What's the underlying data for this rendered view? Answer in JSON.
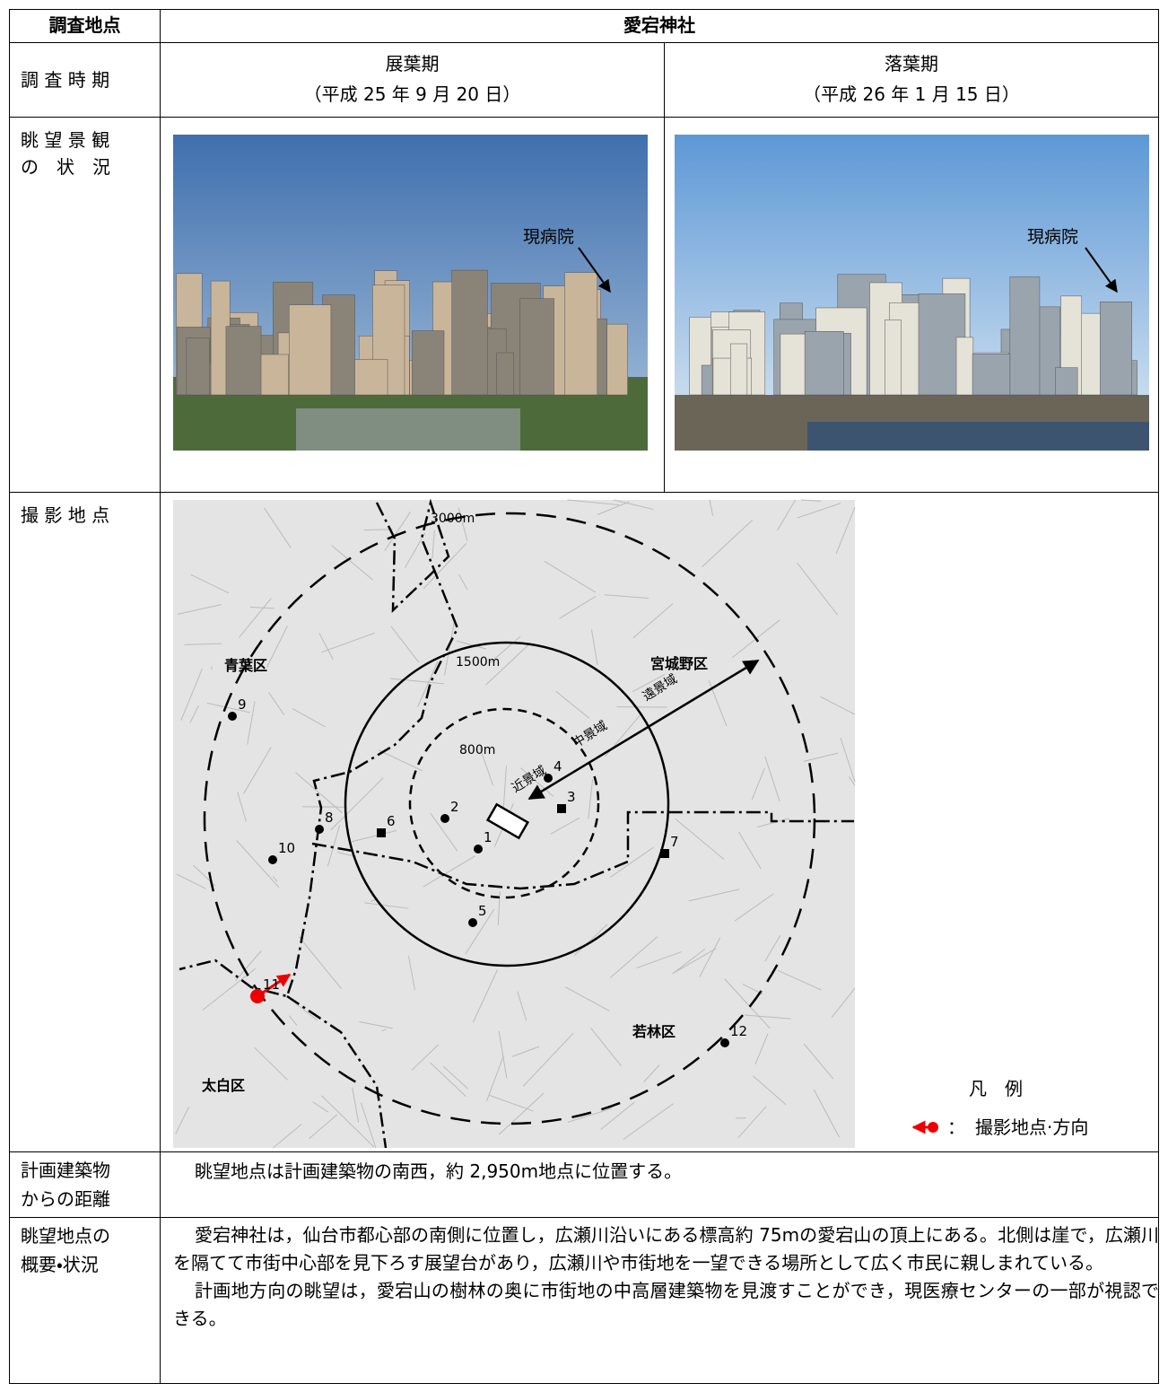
{
  "table": {
    "header": {
      "label": "調査地点",
      "value": "愛宕神社"
    },
    "survey_period": {
      "label": "調 査 時 期",
      "leaf_on": {
        "title": "展葉期",
        "date": "（平成 25 年 9 月 20 日）"
      },
      "leaf_off": {
        "title": "落葉期",
        "date": "（平成 26 年 1 月 15 日）"
      }
    },
    "view": {
      "label": [
        "眺 望 景 観",
        "の　状　況"
      ],
      "leaf_on_annotation": "現病院",
      "leaf_off_annotation": "現病院"
    },
    "photo_location": {
      "label": "撮 影 地 点",
      "map": {
        "rings": [
          "3000m",
          "1500m",
          "800m"
        ],
        "wards": [
          "青葉区",
          "宮城野区",
          "若林区",
          "太白区"
        ],
        "zones": [
          "近景域",
          "中景域",
          "遠景域"
        ],
        "points": [
          "1",
          "2",
          "3",
          "4",
          "5",
          "6",
          "7",
          "8",
          "9",
          "10",
          "11",
          "12"
        ]
      },
      "legend": {
        "title": "凡　例",
        "separator": "：",
        "item": "撮影地点·方向"
      }
    },
    "distance": {
      "label": [
        "計画建築物",
        "からの距離"
      ],
      "text": "眺望地点は計画建築物の南西，約 2,950m地点に位置する。"
    },
    "overview": {
      "label": [
        "眺望地点の",
        "概要・状況"
      ],
      "paragraphs": [
        "愛宕神社は，仙台市都心部の南側に位置し，広瀬川沿いにある標高約 75mの愛宕山の頂上にある。北側は崖で，広瀬川を隔てて市街中心部を見下ろす展望台があり，広瀬川や市街地を一望できる場所として広く市民に親しまれている。",
        "計画地方向の眺望は，愛宕山の樹林の奥に市街地の中高層建築物を見渡すことができ，現医療センターの一部が視認できる。"
      ]
    }
  }
}
